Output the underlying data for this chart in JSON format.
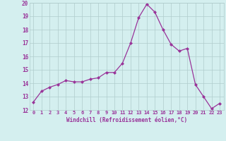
{
  "x": [
    0,
    1,
    2,
    3,
    4,
    5,
    6,
    7,
    8,
    9,
    10,
    11,
    12,
    13,
    14,
    15,
    16,
    17,
    18,
    19,
    20,
    21,
    22,
    23
  ],
  "y": [
    12.6,
    13.4,
    13.7,
    13.9,
    14.2,
    14.1,
    14.1,
    14.3,
    14.4,
    14.8,
    14.8,
    15.5,
    17.0,
    18.9,
    19.9,
    19.3,
    18.0,
    16.9,
    16.4,
    16.6,
    13.9,
    13.0,
    12.1,
    12.5
  ],
  "xlabel": "Windchill (Refroidissement éolien,°C)",
  "ylim": [
    12,
    20
  ],
  "xlim": [
    -0.5,
    23.5
  ],
  "yticks": [
    12,
    13,
    14,
    15,
    16,
    17,
    18,
    19,
    20
  ],
  "xticks": [
    0,
    1,
    2,
    3,
    4,
    5,
    6,
    7,
    8,
    9,
    10,
    11,
    12,
    13,
    14,
    15,
    16,
    17,
    18,
    19,
    20,
    21,
    22,
    23
  ],
  "line_color": "#993399",
  "marker_color": "#993399",
  "bg_color": "#d4efef",
  "grid_color": "#b0cccc",
  "tick_label_color": "#993399",
  "xlabel_color": "#993399"
}
